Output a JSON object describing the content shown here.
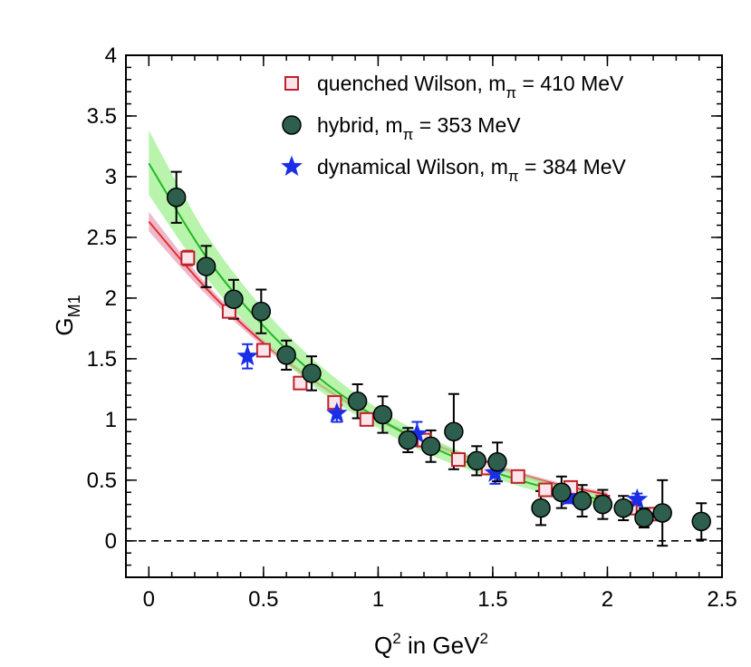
{
  "chart_data": {
    "type": "scatter",
    "title": "",
    "xlabel": {
      "base": "Q",
      "sup1": "2",
      "middle": " in GeV",
      "sup2": "2"
    },
    "ylabel": {
      "base": "G",
      "sub": "M1"
    },
    "xlim": [
      -0.1,
      2.5
    ],
    "ylim": [
      -0.3,
      4.0
    ],
    "xticks": [
      0,
      0.5,
      1,
      1.5,
      2,
      2.5
    ],
    "xtick_labels": [
      "0",
      "0.5",
      "1",
      "1.5",
      "2",
      "2.5"
    ],
    "yticks": [
      0,
      0.5,
      1,
      1.5,
      2,
      2.5,
      3,
      3.5,
      4
    ],
    "ytick_labels": [
      "0",
      "0.5",
      "1",
      "1.5",
      "2",
      "2.5",
      "3",
      "3.5",
      "4"
    ],
    "reference_line": {
      "y": 0,
      "style": "dashed"
    },
    "legend_position": "top-right",
    "bands": [
      {
        "name": "quenched Wilson fit",
        "color": "#e03030",
        "fill": "#e8a0b8",
        "x": [
          0.0,
          0.25,
          0.5,
          0.75,
          1.0,
          1.25,
          1.5,
          1.75,
          2.0
        ],
        "center": [
          2.63,
          2.08,
          1.63,
          1.28,
          1.0,
          0.79,
          0.62,
          0.48,
          0.38
        ],
        "upper": [
          2.71,
          2.12,
          1.66,
          1.3,
          1.02,
          0.81,
          0.64,
          0.5,
          0.4
        ],
        "lower": [
          2.55,
          2.03,
          1.6,
          1.26,
          0.98,
          0.77,
          0.6,
          0.46,
          0.36
        ]
      },
      {
        "name": "hybrid fit",
        "color": "#22b822",
        "fill": "#a0f090",
        "x": [
          0.0,
          0.25,
          0.5,
          0.75,
          1.0,
          1.25,
          1.5,
          1.75,
          2.0
        ],
        "center": [
          3.11,
          2.34,
          1.77,
          1.33,
          1.01,
          0.76,
          0.57,
          0.43,
          0.33
        ],
        "upper": [
          3.38,
          2.53,
          1.91,
          1.44,
          1.09,
          0.83,
          0.63,
          0.48,
          0.37
        ],
        "lower": [
          2.85,
          2.17,
          1.64,
          1.23,
          0.93,
          0.69,
          0.52,
          0.38,
          0.29
        ]
      }
    ],
    "series": [
      {
        "name": "quenched Wilson",
        "label_pre": "quenched Wilson, m",
        "label_sub": "π",
        "label_post": " = 410 MeV",
        "marker": "square",
        "color": "#c0202a",
        "fill": "#fbe4ea",
        "points": [
          {
            "x": 0.17,
            "y": 2.33,
            "err": 0.06
          },
          {
            "x": 0.35,
            "y": 1.89,
            "err": 0.05
          },
          {
            "x": 0.5,
            "y": 1.57,
            "err": 0.04
          },
          {
            "x": 0.66,
            "y": 1.3,
            "err": 0.04
          },
          {
            "x": 0.81,
            "y": 1.14,
            "err": 0.04
          },
          {
            "x": 0.95,
            "y": 1.0,
            "err": 0.03
          },
          {
            "x": 1.2,
            "y": 0.83,
            "err": 0.03
          },
          {
            "x": 1.35,
            "y": 0.67,
            "err": 0.03
          },
          {
            "x": 1.48,
            "y": 0.6,
            "err": 0.03
          },
          {
            "x": 1.61,
            "y": 0.53,
            "err": 0.03
          },
          {
            "x": 1.73,
            "y": 0.42,
            "err": 0.03
          },
          {
            "x": 1.84,
            "y": 0.44,
            "err": 0.03
          },
          {
            "x": 1.98,
            "y": 0.32,
            "err": 0.03
          },
          {
            "x": 2.1,
            "y": 0.27,
            "err": 0.03
          },
          {
            "x": 2.21,
            "y": 0.22,
            "err": 0.03
          }
        ]
      },
      {
        "name": "hybrid",
        "label_pre": "hybrid, m",
        "label_sub": "π",
        "label_post": " = 353 MeV",
        "marker": "circle",
        "color": "#000000",
        "fill": "#2e5e4e",
        "points": [
          {
            "x": 0.12,
            "y": 2.83,
            "err": 0.21
          },
          {
            "x": 0.25,
            "y": 2.26,
            "err": 0.17
          },
          {
            "x": 0.37,
            "y": 1.99,
            "err": 0.16
          },
          {
            "x": 0.49,
            "y": 1.89,
            "err": 0.18
          },
          {
            "x": 0.6,
            "y": 1.53,
            "err": 0.12
          },
          {
            "x": 0.71,
            "y": 1.38,
            "err": 0.14
          },
          {
            "x": 0.91,
            "y": 1.15,
            "err": 0.14
          },
          {
            "x": 1.02,
            "y": 1.04,
            "err": 0.15
          },
          {
            "x": 1.13,
            "y": 0.83,
            "err": 0.1
          },
          {
            "x": 1.23,
            "y": 0.78,
            "err": 0.13
          },
          {
            "x": 1.33,
            "y": 0.9,
            "err": 0.31
          },
          {
            "x": 1.43,
            "y": 0.66,
            "err": 0.12
          },
          {
            "x": 1.52,
            "y": 0.65,
            "err": 0.16
          },
          {
            "x": 1.71,
            "y": 0.27,
            "err": 0.14
          },
          {
            "x": 1.8,
            "y": 0.4,
            "err": 0.13
          },
          {
            "x": 1.89,
            "y": 0.33,
            "err": 0.13
          },
          {
            "x": 1.98,
            "y": 0.3,
            "err": 0.12
          },
          {
            "x": 2.07,
            "y": 0.27,
            "err": 0.1
          },
          {
            "x": 2.16,
            "y": 0.19,
            "err": 0.08
          },
          {
            "x": 2.24,
            "y": 0.23,
            "err": 0.27
          },
          {
            "x": 2.41,
            "y": 0.16,
            "err": 0.15
          }
        ]
      },
      {
        "name": "dynamical Wilson",
        "label_pre": "dynamical Wilson, m",
        "label_sub": "π",
        "label_post": " = 384 MeV",
        "marker": "star",
        "color": "#1a2ee8",
        "fill": "#1a2ee8",
        "points": [
          {
            "x": 0.43,
            "y": 1.52,
            "err": 0.1
          },
          {
            "x": 0.82,
            "y": 1.05,
            "err": 0.07
          },
          {
            "x": 1.17,
            "y": 0.88,
            "err": 0.1
          },
          {
            "x": 1.51,
            "y": 0.56,
            "err": 0.09
          },
          {
            "x": 1.83,
            "y": 0.36,
            "err": 0.05
          },
          {
            "x": 2.13,
            "y": 0.34,
            "err": 0.05
          }
        ]
      }
    ]
  }
}
